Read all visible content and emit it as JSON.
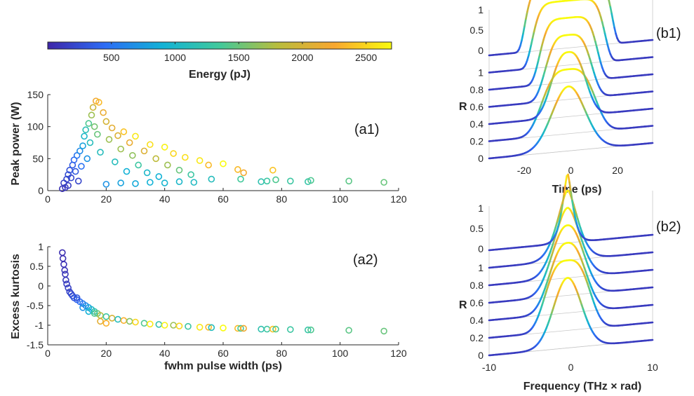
{
  "chart_data": [
    {
      "type": "colorbar",
      "title": "Energy (pJ)",
      "ticks": [
        500,
        1000,
        1500,
        2000,
        2500
      ],
      "range": [
        0,
        2700
      ],
      "colormap": [
        "#3e26a8",
        "#2c6cf5",
        "#12b2d6",
        "#41c99b",
        "#b7bd3d",
        "#f9a72f",
        "#f9fb0e"
      ]
    },
    {
      "type": "scatter",
      "panel_label": "(a1)",
      "xlabel": "",
      "ylabel": "Peak power (W)",
      "xlim": [
        0,
        120
      ],
      "ylim": [
        0,
        150
      ],
      "xticks": [
        0,
        20,
        40,
        60,
        80,
        100,
        120
      ],
      "yticks": [
        0,
        50,
        100,
        150
      ],
      "color_by": "Energy (pJ)",
      "points": [
        {
          "x": 5,
          "y": 3,
          "e": 80
        },
        {
          "x": 6,
          "y": 5,
          "e": 120
        },
        {
          "x": 7,
          "y": 8,
          "e": 150
        },
        {
          "x": 5.5,
          "y": 12,
          "e": 160
        },
        {
          "x": 6.5,
          "y": 18,
          "e": 200
        },
        {
          "x": 7,
          "y": 25,
          "e": 250
        },
        {
          "x": 7.5,
          "y": 32,
          "e": 280
        },
        {
          "x": 8,
          "y": 20,
          "e": 220
        },
        {
          "x": 8.5,
          "y": 40,
          "e": 350
        },
        {
          "x": 9,
          "y": 48,
          "e": 420
        },
        {
          "x": 9.5,
          "y": 30,
          "e": 330
        },
        {
          "x": 10,
          "y": 55,
          "e": 520
        },
        {
          "x": 10.5,
          "y": 15,
          "e": 200
        },
        {
          "x": 11,
          "y": 62,
          "e": 650
        },
        {
          "x": 11.5,
          "y": 38,
          "e": 480
        },
        {
          "x": 12,
          "y": 70,
          "e": 800
        },
        {
          "x": 12.5,
          "y": 85,
          "e": 1000
        },
        {
          "x": 13,
          "y": 95,
          "e": 1150
        },
        {
          "x": 13.5,
          "y": 50,
          "e": 700
        },
        {
          "x": 14,
          "y": 105,
          "e": 1400
        },
        {
          "x": 14.5,
          "y": 75,
          "e": 1100
        },
        {
          "x": 15,
          "y": 118,
          "e": 1700
        },
        {
          "x": 15.5,
          "y": 130,
          "e": 1950
        },
        {
          "x": 16,
          "y": 100,
          "e": 1550
        },
        {
          "x": 16.5,
          "y": 140,
          "e": 2200
        },
        {
          "x": 17,
          "y": 88,
          "e": 1500
        },
        {
          "x": 17.5,
          "y": 138,
          "e": 2350
        },
        {
          "x": 18,
          "y": 60,
          "e": 1100
        },
        {
          "x": 19,
          "y": 122,
          "e": 2150
        },
        {
          "x": 20,
          "y": 108,
          "e": 2000
        },
        {
          "x": 21,
          "y": 80,
          "e": 1700
        },
        {
          "x": 22,
          "y": 98,
          "e": 2100
        },
        {
          "x": 23,
          "y": 45,
          "e": 1100
        },
        {
          "x": 24,
          "y": 86,
          "e": 2050
        },
        {
          "x": 25,
          "y": 65,
          "e": 1700
        },
        {
          "x": 26,
          "y": 92,
          "e": 2400
        },
        {
          "x": 27,
          "y": 30,
          "e": 900
        },
        {
          "x": 28,
          "y": 75,
          "e": 2150
        },
        {
          "x": 29,
          "y": 55,
          "e": 1650
        },
        {
          "x": 30,
          "y": 85,
          "e": 2600
        },
        {
          "x": 31,
          "y": 40,
          "e": 1300
        },
        {
          "x": 33,
          "y": 62,
          "e": 2050
        },
        {
          "x": 34,
          "y": 28,
          "e": 1000
        },
        {
          "x": 35,
          "y": 72,
          "e": 2550
        },
        {
          "x": 37,
          "y": 50,
          "e": 1850
        },
        {
          "x": 38,
          "y": 22,
          "e": 900
        },
        {
          "x": 40,
          "y": 68,
          "e": 2650
        },
        {
          "x": 41,
          "y": 40,
          "e": 1700
        },
        {
          "x": 43,
          "y": 58,
          "e": 2500
        },
        {
          "x": 45,
          "y": 32,
          "e": 1500
        },
        {
          "x": 47,
          "y": 52,
          "e": 2550
        },
        {
          "x": 49,
          "y": 25,
          "e": 1300
        },
        {
          "x": 52,
          "y": 47,
          "e": 2600
        },
        {
          "x": 55,
          "y": 40,
          "e": 2350
        },
        {
          "x": 56,
          "y": 18,
          "e": 1100
        },
        {
          "x": 60,
          "y": 42,
          "e": 2700
        },
        {
          "x": 65,
          "y": 33,
          "e": 2350
        },
        {
          "x": 66,
          "y": 18,
          "e": 1350
        },
        {
          "x": 67,
          "y": 28,
          "e": 2200
        },
        {
          "x": 77,
          "y": 32,
          "e": 2400
        },
        {
          "x": 78,
          "y": 17,
          "e": 1400
        },
        {
          "x": 83,
          "y": 15,
          "e": 1300
        },
        {
          "x": 89,
          "y": 14,
          "e": 1250
        },
        {
          "x": 90,
          "y": 16,
          "e": 1400
        },
        {
          "x": 103,
          "y": 15,
          "e": 1450
        },
        {
          "x": 115,
          "y": 13,
          "e": 1500
        },
        {
          "x": 20,
          "y": 10,
          "e": 700
        },
        {
          "x": 25,
          "y": 12,
          "e": 800
        },
        {
          "x": 30,
          "y": 11,
          "e": 850
        },
        {
          "x": 35,
          "y": 13,
          "e": 900
        },
        {
          "x": 40,
          "y": 12,
          "e": 950
        },
        {
          "x": 45,
          "y": 14,
          "e": 1000
        },
        {
          "x": 50,
          "y": 13,
          "e": 1050
        },
        {
          "x": 73,
          "y": 14,
          "e": 1200
        },
        {
          "x": 75,
          "y": 15,
          "e": 1300
        }
      ]
    },
    {
      "type": "scatter",
      "panel_label": "(a2)",
      "xlabel": "fwhm pulse width (ps)",
      "ylabel": "Excess kurtosis",
      "xlim": [
        0,
        120
      ],
      "ylim": [
        -1.5,
        1
      ],
      "xticks": [
        0,
        20,
        40,
        60,
        80,
        100,
        120
      ],
      "yticks": [
        -1.5,
        -1,
        -0.5,
        0,
        0.5,
        1
      ],
      "color_by": "Energy (pJ)",
      "points": [
        {
          "x": 5,
          "y": 0.85,
          "e": 50
        },
        {
          "x": 5.2,
          "y": 0.7,
          "e": 60
        },
        {
          "x": 5.5,
          "y": 0.55,
          "e": 80
        },
        {
          "x": 5.8,
          "y": 0.4,
          "e": 90
        },
        {
          "x": 6,
          "y": 0.3,
          "e": 100
        },
        {
          "x": 6.2,
          "y": 0.15,
          "e": 120
        },
        {
          "x": 6.5,
          "y": 0.05,
          "e": 140
        },
        {
          "x": 7,
          "y": -0.05,
          "e": 160
        },
        {
          "x": 7.5,
          "y": -0.15,
          "e": 190
        },
        {
          "x": 8,
          "y": -0.2,
          "e": 220
        },
        {
          "x": 8.5,
          "y": -0.25,
          "e": 250
        },
        {
          "x": 9,
          "y": -0.3,
          "e": 300
        },
        {
          "x": 10,
          "y": -0.35,
          "e": 380
        },
        {
          "x": 11,
          "y": -0.4,
          "e": 450
        },
        {
          "x": 12,
          "y": -0.45,
          "e": 550
        },
        {
          "x": 13,
          "y": -0.5,
          "e": 650
        },
        {
          "x": 14,
          "y": -0.55,
          "e": 800
        },
        {
          "x": 15,
          "y": -0.6,
          "e": 1000
        },
        {
          "x": 16,
          "y": -0.65,
          "e": 1200
        },
        {
          "x": 17,
          "y": -0.7,
          "e": 1500
        },
        {
          "x": 18,
          "y": -0.75,
          "e": 1800
        },
        {
          "x": 20,
          "y": -0.78,
          "e": 1300
        },
        {
          "x": 22,
          "y": -0.82,
          "e": 2000
        },
        {
          "x": 24,
          "y": -0.85,
          "e": 1100
        },
        {
          "x": 26,
          "y": -0.88,
          "e": 2300
        },
        {
          "x": 28,
          "y": -0.9,
          "e": 1600
        },
        {
          "x": 30,
          "y": -0.92,
          "e": 2500
        },
        {
          "x": 33,
          "y": -0.95,
          "e": 1400
        },
        {
          "x": 35,
          "y": -0.97,
          "e": 2600
        },
        {
          "x": 38,
          "y": -0.98,
          "e": 1200
        },
        {
          "x": 40,
          "y": -1.0,
          "e": 2650
        },
        {
          "x": 43,
          "y": -1.0,
          "e": 1700
        },
        {
          "x": 45,
          "y": -1.02,
          "e": 2500
        },
        {
          "x": 48,
          "y": -1.03,
          "e": 1300
        },
        {
          "x": 52,
          "y": -1.05,
          "e": 2600
        },
        {
          "x": 55,
          "y": -1.05,
          "e": 2350
        },
        {
          "x": 56,
          "y": -1.06,
          "e": 1100
        },
        {
          "x": 60,
          "y": -1.07,
          "e": 2700
        },
        {
          "x": 65,
          "y": -1.08,
          "e": 2350
        },
        {
          "x": 66,
          "y": -1.08,
          "e": 1350
        },
        {
          "x": 67,
          "y": -1.08,
          "e": 2200
        },
        {
          "x": 73,
          "y": -1.1,
          "e": 1200
        },
        {
          "x": 75,
          "y": -1.1,
          "e": 1300
        },
        {
          "x": 77,
          "y": -1.1,
          "e": 2400
        },
        {
          "x": 78,
          "y": -1.1,
          "e": 1400
        },
        {
          "x": 83,
          "y": -1.11,
          "e": 1300
        },
        {
          "x": 89,
          "y": -1.12,
          "e": 1250
        },
        {
          "x": 90,
          "y": -1.12,
          "e": 1400
        },
        {
          "x": 103,
          "y": -1.13,
          "e": 1450
        },
        {
          "x": 115,
          "y": -1.15,
          "e": 1500
        },
        {
          "x": 10,
          "y": -0.3,
          "e": 300
        },
        {
          "x": 12,
          "y": -0.55,
          "e": 700
        },
        {
          "x": 14,
          "y": -0.65,
          "e": 900
        },
        {
          "x": 16,
          "y": -0.7,
          "e": 1400
        },
        {
          "x": 18,
          "y": -0.9,
          "e": 2100
        },
        {
          "x": 20,
          "y": -0.95,
          "e": 2300
        }
      ]
    },
    {
      "type": "line",
      "panel_label": "(b1)",
      "xlabel": "Time (ps)",
      "ylabel": "R",
      "xlim": [
        -35,
        35
      ],
      "xticks": [
        -20,
        0,
        20
      ],
      "ylim": [
        0,
        1
      ],
      "yticks_stack": [
        "0",
        "0.2",
        "0.4",
        "0.6",
        "0.8",
        "1"
      ],
      "zticks": [
        "0",
        "0.5",
        "1"
      ],
      "traces": [
        {
          "offset": 0.0,
          "width": 10,
          "sharp": 1
        },
        {
          "offset": 0.2,
          "width": 13,
          "sharp": 1.6
        },
        {
          "offset": 0.4,
          "width": 9,
          "sharp": 1.3
        },
        {
          "offset": 0.6,
          "width": 11,
          "sharp": 1.8
        },
        {
          "offset": 0.8,
          "width": 13,
          "sharp": 2.6
        },
        {
          "offset": 1.0,
          "width": 16,
          "sharp": 3.5
        },
        {
          "offset": 1.2,
          "width": 19,
          "sharp": 5
        }
      ]
    },
    {
      "type": "line",
      "panel_label": "(b2)",
      "xlabel": "Frequency (THz × rad)",
      "ylabel": "R",
      "xlim": [
        -10,
        10
      ],
      "xticks": [
        -10,
        0,
        10
      ],
      "ylim": [
        0,
        1
      ],
      "yticks_stack": [
        "0",
        "0.2",
        "0.4",
        "0.6",
        "0.8",
        "1"
      ],
      "zticks": [
        "0",
        "0.5",
        "1"
      ],
      "traces": [
        {
          "offset": 0.0,
          "width": 2.4,
          "sharp": 1
        },
        {
          "offset": 0.2,
          "width": 3.2,
          "sharp": 1.5
        },
        {
          "offset": 0.4,
          "width": 2.8,
          "sharp": 1.2
        },
        {
          "offset": 0.6,
          "width": 2.6,
          "sharp": 1.1
        },
        {
          "offset": 0.8,
          "width": 2.2,
          "sharp": 0.9
        },
        {
          "offset": 1.0,
          "width": 1.8,
          "sharp": 0.8
        },
        {
          "offset": 1.2,
          "width": 0.9,
          "sharp": 0.7
        }
      ]
    }
  ]
}
